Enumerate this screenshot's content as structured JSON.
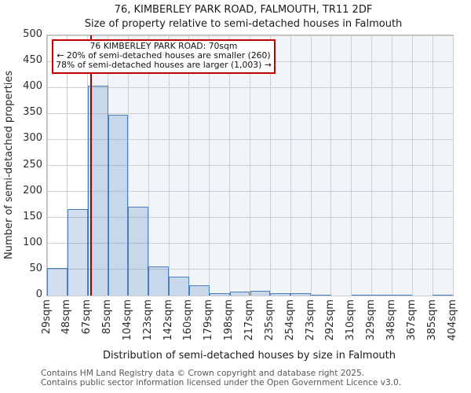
{
  "figure": {
    "title": "76, KIMBERLEY PARK ROAD, FALMOUTH, TR11 2DF",
    "subtitle": "Size of property relative to semi-detached houses in Falmouth",
    "footer_line1": "Contains HM Land Registry data © Crown copyright and database right 2025.",
    "footer_line2": "Contains public sector information licensed under the Open Government Licence v3.0."
  },
  "annotation": {
    "line1": "76 KIMBERLEY PARK ROAD: 70sqm",
    "line2": "← 20% of semi-detached houses are smaller (260)",
    "line3": "78% of semi-detached houses are larger (1,003) →"
  },
  "chart_data": {
    "type": "bar",
    "title": "76, KIMBERLEY PARK ROAD, FALMOUTH, TR11 2DF",
    "subtitle": "Size of property relative to semi-detached houses in Falmouth",
    "xlabel": "Distribution of semi-detached houses by size in Falmouth",
    "ylabel": "Number of semi-detached properties",
    "categories": [
      "29sqm",
      "48sqm",
      "67sqm",
      "85sqm",
      "104sqm",
      "123sqm",
      "142sqm",
      "160sqm",
      "179sqm",
      "198sqm",
      "217sqm",
      "235sqm",
      "254sqm",
      "273sqm",
      "292sqm",
      "310sqm",
      "329sqm",
      "348sqm",
      "367sqm",
      "385sqm",
      "404sqm"
    ],
    "bin_edges_sqm": [
      29,
      48,
      67,
      85,
      104,
      123,
      142,
      160,
      179,
      198,
      217,
      235,
      254,
      273,
      292,
      310,
      329,
      348,
      367,
      385,
      404
    ],
    "values": [
      53,
      166,
      404,
      347,
      171,
      56,
      36,
      19,
      4,
      7,
      9,
      4,
      4,
      1,
      0,
      2,
      2,
      2,
      0,
      2
    ],
    "ylim": [
      0,
      500
    ],
    "ytick_step": 50,
    "grid": true,
    "legend": false,
    "marker_sqm": 70,
    "marker_count_smaller": 260,
    "marker_pct_smaller": 20,
    "marker_count_larger": 1003,
    "marker_pct_larger": 78,
    "colors": {
      "bar_fill": "rgba(79,129,189,0.25)",
      "bar_edge": "#4a7fbf",
      "shade_right_of_marker": "rgba(79,129,189,0.08)",
      "marker_line": "#a00000",
      "annotation_border": "#bf0000",
      "grid": "#cecece"
    }
  }
}
